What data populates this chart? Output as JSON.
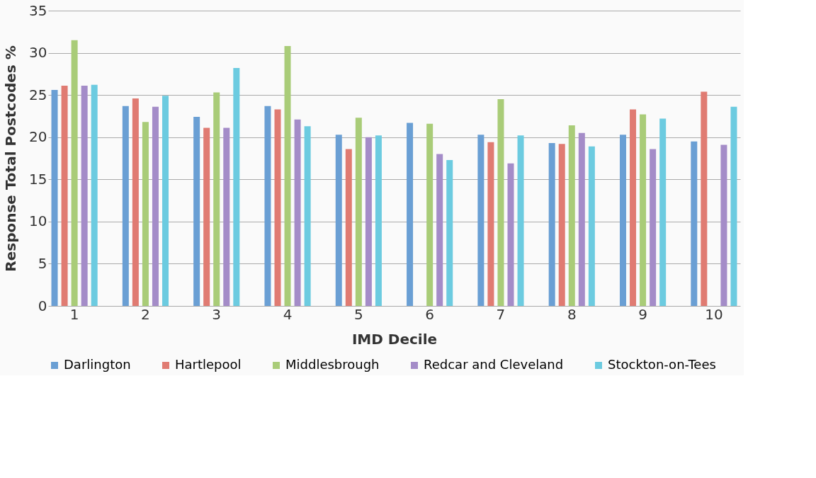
{
  "chart_data": {
    "type": "bar",
    "xlabel": "IMD Decile",
    "ylabel": "Response Total Postcodes %",
    "categories": [
      "1",
      "2",
      "3",
      "4",
      "5",
      "6",
      "7",
      "8",
      "9",
      "10"
    ],
    "series": [
      {
        "name": "Darlington",
        "color": "#6a9fd4",
        "values": [
          25.6,
          23.7,
          22.4,
          23.7,
          20.3,
          21.7,
          20.3,
          19.3,
          20.3,
          19.5
        ]
      },
      {
        "name": "Hartlepool",
        "color": "#e07b72",
        "values": [
          26.1,
          24.6,
          21.1,
          23.3,
          18.6,
          null,
          19.4,
          19.2,
          23.3,
          25.4
        ]
      },
      {
        "name": "Middlesbrough",
        "color": "#a9cc78",
        "values": [
          31.5,
          21.8,
          25.3,
          30.8,
          22.3,
          21.6,
          24.5,
          21.4,
          22.7,
          null
        ]
      },
      {
        "name": "Redcar and Cleveland",
        "color": "#a48cc8",
        "values": [
          26.1,
          23.6,
          21.1,
          22.1,
          20.0,
          18.0,
          16.9,
          20.5,
          18.6,
          19.1
        ]
      },
      {
        "name": "Stockton-on-Tees",
        "color": "#6ccbe0",
        "values": [
          26.2,
          24.9,
          28.2,
          21.3,
          20.2,
          17.3,
          20.2,
          18.9,
          22.2,
          23.6
        ]
      }
    ],
    "ylim": [
      0,
      35
    ],
    "yticks": [
      0,
      5,
      10,
      15,
      20,
      25,
      30,
      35
    ],
    "grid": "y",
    "legend": "bottom"
  }
}
